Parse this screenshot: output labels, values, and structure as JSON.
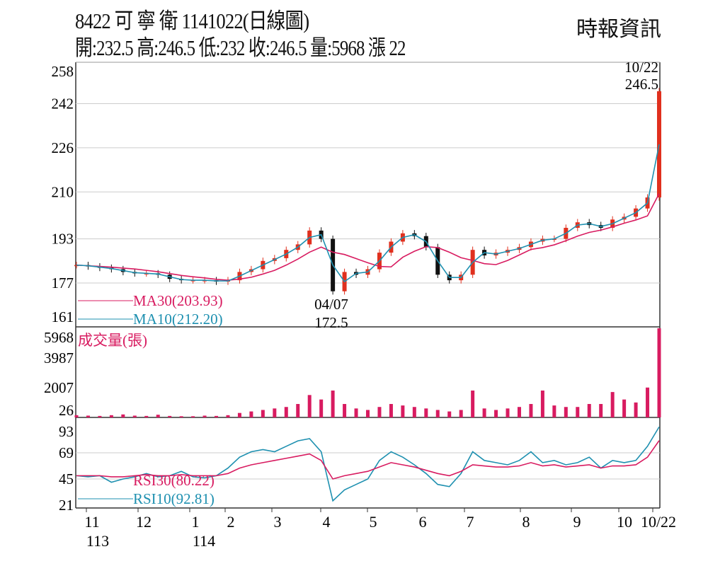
{
  "header": {
    "title": "8422  可 寧 衛 1141022(日線圖)",
    "ohlc": "開:232.5 高:246.5 低:232 收:246.5 量:5968 漲 22",
    "source": "時報資訊"
  },
  "chart_data": {
    "type": "candlestick",
    "price": {
      "yticks": [
        "258",
        "242",
        "226",
        "210",
        "193",
        "177",
        "161"
      ],
      "ylim": [
        161,
        258
      ],
      "close": [
        183.5,
        183,
        182.5,
        182,
        181,
        180.5,
        180.5,
        180,
        178.5,
        178,
        178,
        178,
        177.5,
        178,
        181,
        182,
        185,
        186,
        189,
        191,
        196,
        193,
        174,
        181,
        180,
        182,
        188,
        192,
        195,
        194,
        190,
        180,
        178,
        180,
        189,
        187,
        188,
        189,
        190,
        192,
        193,
        193,
        197,
        199,
        198,
        197,
        200,
        201,
        204,
        208,
        246.5
      ],
      "last_annotation": {
        "date": "10/22",
        "value": "246.5"
      },
      "low_annotation": {
        "date": "04/07",
        "value": "172.5"
      },
      "ma30_label": "MA30(203.93)",
      "ma10_label": "MA10(212.20)",
      "colors": {
        "up": "#e0301e",
        "down": "#111111",
        "ma30": "#d81b60",
        "ma10": "#1e90b0"
      }
    },
    "volume": {
      "label": "成交量(張)",
      "yticks": [
        "5968",
        "3987",
        "2007",
        "26"
      ],
      "ylim": [
        0,
        5968
      ],
      "values": [
        150,
        120,
        100,
        150,
        200,
        120,
        100,
        180,
        100,
        80,
        80,
        120,
        100,
        150,
        300,
        400,
        500,
        600,
        700,
        900,
        1500,
        1200,
        1800,
        900,
        600,
        500,
        700,
        900,
        800,
        700,
        600,
        500,
        400,
        500,
        1800,
        600,
        500,
        600,
        700,
        900,
        1800,
        800,
        700,
        700,
        900,
        900,
        1700,
        1200,
        1000,
        2000,
        5968
      ],
      "color": "#d81b60"
    },
    "rsi": {
      "yticks": [
        "93",
        "69",
        "45",
        "21"
      ],
      "ylim": [
        21,
        93
      ],
      "rsi30_label": "RSI30(80.22)",
      "rsi10_label": "RSI10(92.81)",
      "rsi10": [
        48,
        47,
        48,
        42,
        45,
        47,
        50,
        47,
        48,
        52,
        47,
        46,
        48,
        55,
        65,
        70,
        72,
        70,
        75,
        80,
        82,
        70,
        25,
        35,
        40,
        45,
        62,
        70,
        65,
        58,
        50,
        40,
        38,
        50,
        70,
        62,
        60,
        58,
        62,
        70,
        60,
        62,
        58,
        60,
        65,
        55,
        62,
        60,
        62,
        75,
        92.81
      ],
      "rsi30": [
        48,
        48,
        48,
        47,
        47,
        48,
        49,
        48,
        48,
        49,
        48,
        48,
        48,
        50,
        55,
        58,
        60,
        62,
        64,
        66,
        68,
        62,
        45,
        48,
        50,
        52,
        56,
        60,
        58,
        56,
        53,
        50,
        48,
        52,
        58,
        57,
        56,
        56,
        57,
        60,
        57,
        58,
        56,
        57,
        58,
        55,
        57,
        57,
        58,
        65,
        80.22
      ]
    },
    "xticks": [
      "11",
      "12",
      "1",
      "2",
      "3",
      "4",
      "5",
      "6",
      "7",
      "8",
      "9",
      "10",
      "10/22"
    ],
    "year_labels": [
      "113",
      "114"
    ]
  }
}
